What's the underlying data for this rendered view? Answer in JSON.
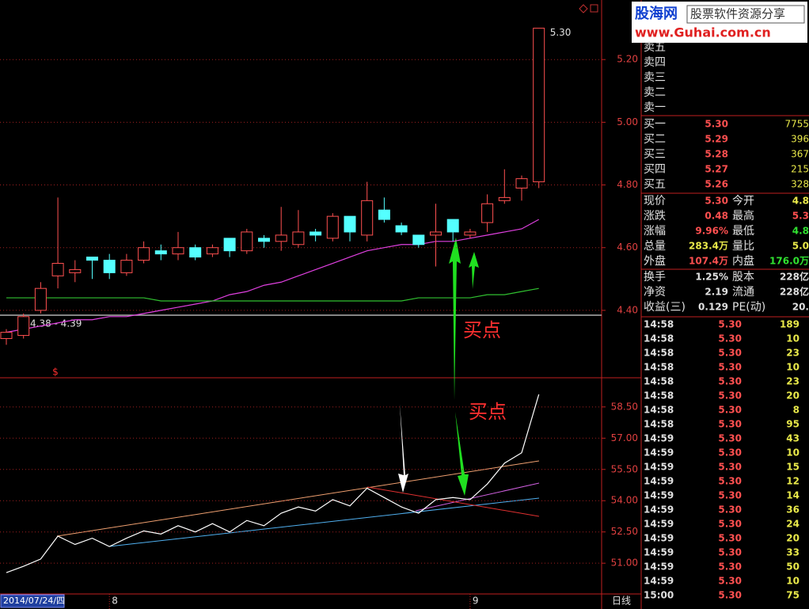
{
  "chart_data": [
    {
      "type": "candlestick",
      "up_color": "#ff5050",
      "down_color": "#54ffff",
      "open": [
        4.31,
        4.32,
        4.4,
        4.51,
        4.52,
        4.57,
        4.56,
        4.52,
        4.56,
        4.59,
        4.58,
        4.6,
        4.58,
        4.63,
        4.59,
        4.63,
        4.62,
        4.61,
        4.65,
        4.63,
        4.7,
        4.64,
        4.72,
        4.67,
        4.64,
        4.64,
        4.69,
        4.64,
        4.68,
        4.75,
        4.79,
        4.81
      ],
      "high": [
        4.34,
        4.39,
        4.49,
        4.76,
        4.56,
        4.57,
        4.58,
        4.58,
        4.62,
        4.61,
        4.65,
        4.61,
        4.61,
        4.63,
        4.66,
        4.64,
        4.73,
        4.72,
        4.66,
        4.71,
        4.7,
        4.81,
        4.76,
        4.68,
        4.64,
        4.74,
        4.69,
        4.66,
        4.77,
        4.85,
        4.83,
        5.3
      ],
      "low": [
        4.29,
        4.31,
        4.39,
        4.47,
        4.49,
        4.5,
        4.5,
        4.51,
        4.55,
        4.56,
        4.56,
        4.56,
        4.57,
        4.57,
        4.58,
        4.6,
        4.59,
        4.6,
        4.62,
        4.62,
        4.62,
        4.62,
        4.68,
        4.64,
        4.6,
        4.54,
        4.62,
        4.63,
        4.65,
        4.74,
        4.75,
        4.79
      ],
      "close": [
        4.33,
        4.38,
        4.47,
        4.55,
        4.53,
        4.56,
        4.52,
        4.56,
        4.6,
        4.58,
        4.6,
        4.57,
        4.6,
        4.59,
        4.65,
        4.62,
        4.64,
        4.65,
        4.64,
        4.7,
        4.65,
        4.75,
        4.69,
        4.65,
        4.61,
        4.65,
        4.65,
        4.65,
        4.74,
        4.76,
        4.82,
        5.3
      ],
      "series": [
        {
          "color": "#e040e0",
          "values": [
            4.33,
            4.34,
            4.35,
            4.36,
            4.37,
            4.37,
            4.38,
            4.38,
            4.39,
            4.4,
            4.41,
            4.42,
            4.43,
            4.45,
            4.46,
            4.48,
            4.49,
            4.51,
            4.53,
            4.55,
            4.57,
            4.59,
            4.6,
            4.61,
            4.61,
            4.62,
            4.62,
            4.63,
            4.64,
            4.65,
            4.66,
            4.69
          ]
        },
        {
          "color": "#30c030",
          "values": [
            4.44,
            4.44,
            4.44,
            4.44,
            4.44,
            4.44,
            4.44,
            4.44,
            4.44,
            4.43,
            4.43,
            4.43,
            4.43,
            4.43,
            4.43,
            4.43,
            4.43,
            4.43,
            4.43,
            4.43,
            4.43,
            4.43,
            4.43,
            4.43,
            4.44,
            4.44,
            4.44,
            4.44,
            4.45,
            4.45,
            4.46,
            4.47
          ]
        }
      ],
      "max_label": "5.30",
      "crosshair_label": "4.38 - 4.39",
      "marker": "$",
      "annotation": "买点",
      "ylim": [
        4.185,
        5.39
      ],
      "yticks": [
        {
          "value": 4.4,
          "label": "4.40"
        },
        {
          "value": 4.6,
          "label": "4.60"
        },
        {
          "value": 4.8,
          "label": "4.80"
        },
        {
          "value": 5.0,
          "label": "5.00"
        },
        {
          "value": 5.2,
          "label": "5.20"
        }
      ],
      "grid": true
    },
    {
      "type": "line",
      "categories": [
        null,
        null,
        null,
        null,
        null,
        null,
        "8",
        null,
        null,
        null,
        null,
        null,
        null,
        null,
        null,
        null,
        null,
        null,
        null,
        null,
        null,
        null,
        null,
        null,
        null,
        null,
        null,
        "9",
        null,
        null,
        null,
        null
      ],
      "series": [
        {
          "color": "#ffffff",
          "values": [
            50.55,
            50.85,
            51.2,
            52.3,
            51.9,
            52.2,
            51.8,
            52.2,
            52.55,
            52.4,
            52.8,
            52.5,
            52.9,
            52.5,
            53.05,
            52.8,
            53.4,
            53.7,
            53.5,
            54.05,
            53.75,
            54.6,
            54.15,
            53.7,
            53.4,
            54.05,
            54.15,
            54.05,
            54.8,
            55.8,
            56.3,
            59.1
          ]
        }
      ],
      "annotation": "买点",
      "cursor_label": "2014/07/24/四",
      "period_label": "日线",
      "ylim": [
        49.6,
        59.9
      ],
      "yticks": [
        {
          "value": 51,
          "label": "51.00"
        },
        {
          "value": 52.5,
          "label": "52.50"
        },
        {
          "value": 54,
          "label": "54.00"
        },
        {
          "value": 55.5,
          "label": "55.50"
        },
        {
          "value": 57,
          "label": "57.00"
        },
        {
          "value": 58.5,
          "label": "58.50"
        }
      ],
      "grid": true
    }
  ],
  "quote": {
    "logo": {
      "brand": "股海网",
      "tagline": "股票软件资源分享",
      "url": "www.Guhai.com.cn"
    },
    "asks": [
      "卖五",
      "卖四",
      "卖三",
      "卖二",
      "卖一"
    ],
    "bids": [
      [
        "买一",
        "5.30",
        "7755"
      ],
      [
        "买二",
        "5.29",
        "396"
      ],
      [
        "买三",
        "5.28",
        "367"
      ],
      [
        "买四",
        "5.27",
        "215"
      ],
      [
        "买五",
        "5.26",
        "328"
      ]
    ],
    "stats": [
      [
        "现价",
        "5.30",
        "今开",
        "4.8"
      ],
      [
        "涨跌",
        "0.48",
        "最高",
        "5.3"
      ],
      [
        "涨幅",
        "9.96%",
        "最低",
        "4.8"
      ],
      [
        "总量",
        "283.4万",
        "量比",
        "5.0"
      ],
      [
        "外盘",
        "107.4万",
        "内盘",
        "176.0万"
      ]
    ],
    "fundamentals": [
      [
        "换手",
        "1.25%",
        "股本",
        "228亿"
      ],
      [
        "净资",
        "2.19",
        "流通",
        "228亿"
      ],
      [
        "收益(三)",
        "0.129",
        "PE(动)",
        "20."
      ]
    ],
    "trades": [
      [
        "14:58",
        "5.30",
        "189"
      ],
      [
        "14:58",
        "5.30",
        "10"
      ],
      [
        "14:58",
        "5.30",
        "23"
      ],
      [
        "14:58",
        "5.30",
        "10"
      ],
      [
        "14:58",
        "5.30",
        "23"
      ],
      [
        "14:58",
        "5.30",
        "20"
      ],
      [
        "14:58",
        "5.30",
        "8"
      ],
      [
        "14:58",
        "5.30",
        "95"
      ],
      [
        "14:59",
        "5.30",
        "43"
      ],
      [
        "14:59",
        "5.30",
        "10"
      ],
      [
        "14:59",
        "5.30",
        "15"
      ],
      [
        "14:59",
        "5.30",
        "12"
      ],
      [
        "14:59",
        "5.30",
        "14"
      ],
      [
        "14:59",
        "5.30",
        "36"
      ],
      [
        "14:59",
        "5.30",
        "24"
      ],
      [
        "14:59",
        "5.30",
        "20"
      ],
      [
        "14:59",
        "5.30",
        "33"
      ],
      [
        "14:59",
        "5.30",
        "50"
      ],
      [
        "14:59",
        "5.30",
        "10"
      ],
      [
        "15:00",
        "5.30",
        "75"
      ]
    ]
  }
}
